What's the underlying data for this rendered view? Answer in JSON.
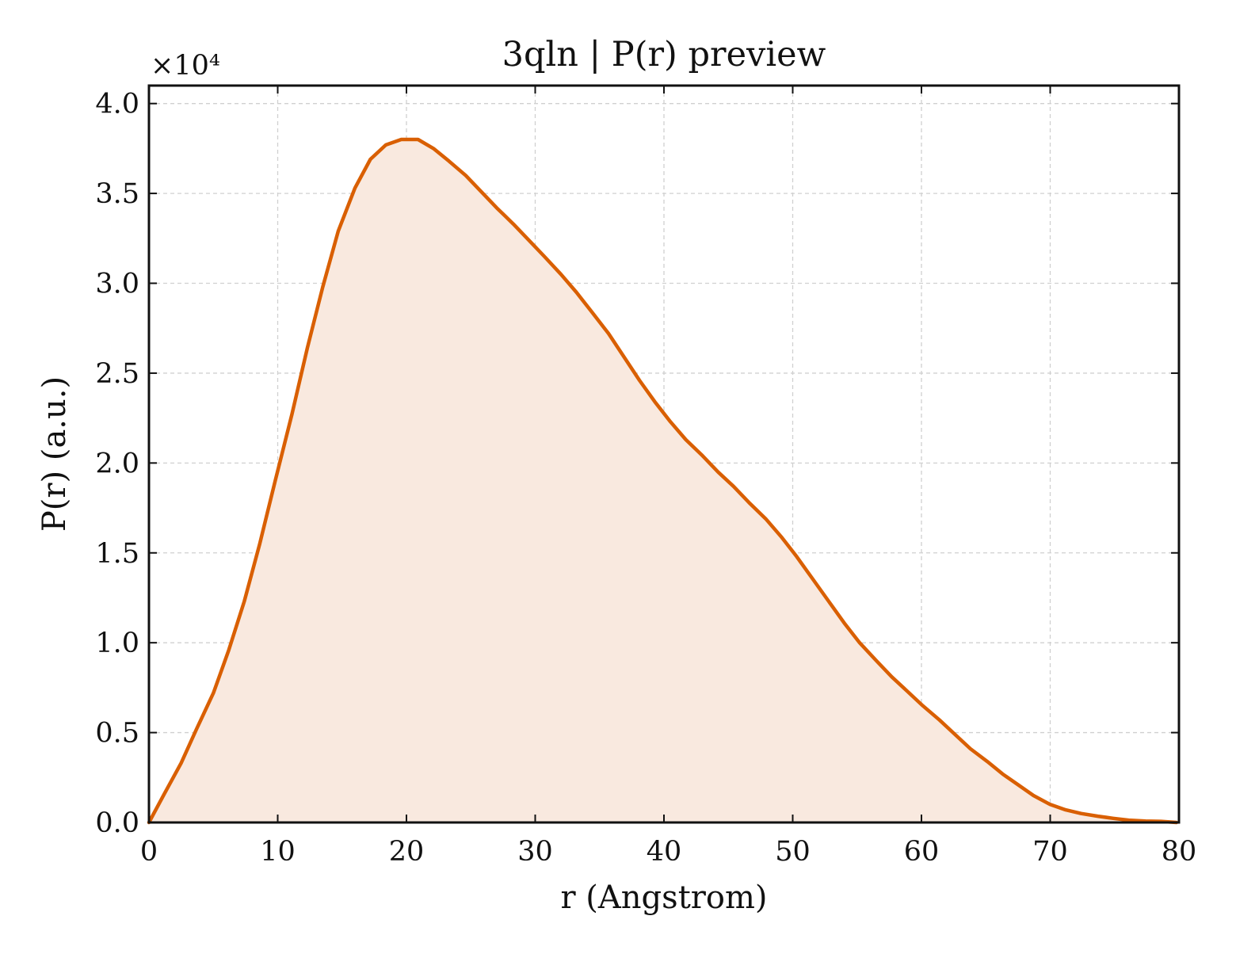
{
  "chart_data": {
    "type": "area",
    "title": "3qln | P(r) preview",
    "xlabel": "r (Angstrom)",
    "ylabel": "P(r) (a.u.)",
    "y_multiplier_label": "×10⁴",
    "xlim": [
      0,
      80
    ],
    "ylim": [
      0,
      41000
    ],
    "x_ticks": [
      0,
      10,
      20,
      30,
      40,
      50,
      60,
      70,
      80
    ],
    "x_tick_labels": [
      "0",
      "10",
      "20",
      "30",
      "40",
      "50",
      "60",
      "70",
      "80"
    ],
    "y_ticks": [
      0,
      5000,
      10000,
      15000,
      20000,
      25000,
      30000,
      35000,
      40000
    ],
    "y_tick_labels": [
      "0.0",
      "0.5",
      "1.0",
      "1.5",
      "2.0",
      "2.5",
      "3.0",
      "3.5",
      "4.0"
    ],
    "grid": true,
    "line_color": "#d95f02",
    "fill_color": "#f9e9df",
    "series": [
      {
        "x": [
          0,
          1.2,
          2.5,
          3.7,
          5,
          6.2,
          7.4,
          8.6,
          9.8,
          11.1,
          12.3,
          13.5,
          14.7,
          16,
          17.2,
          18.4,
          19.6,
          20.9,
          22.1,
          23.3,
          24.6,
          25.8,
          27,
          28.3,
          29.5,
          30.7,
          32,
          33.2,
          34.4,
          35.7,
          36.9,
          38.1,
          39.3,
          40.5,
          41.7,
          43,
          44.2,
          45.4,
          46.6,
          47.9,
          49.1,
          50.3,
          51.5,
          52.8,
          54,
          55.2,
          56.5,
          57.7,
          58.9,
          60.1,
          61.4,
          62.6,
          63.8,
          65.1,
          66.3,
          67.5,
          68.7,
          70,
          71.2,
          72.4,
          73.7,
          74.9,
          76.1,
          77.4,
          78.6,
          79.8
        ],
        "y": [
          0,
          1600,
          3300,
          5200,
          7200,
          9600,
          12300,
          15500,
          19000,
          22700,
          26400,
          29800,
          32900,
          35300,
          36900,
          37700,
          38000,
          38000,
          37500,
          36800,
          36000,
          35100,
          34200,
          33300,
          32400,
          31500,
          30500,
          29500,
          28400,
          27200,
          25900,
          24600,
          23400,
          22300,
          21300,
          20400,
          19500,
          18700,
          17800,
          16900,
          15900,
          14800,
          13600,
          12300,
          11100,
          10000,
          9000,
          8100,
          7300,
          6500,
          5700,
          4900,
          4100,
          3400,
          2700,
          2100,
          1500,
          1000,
          700,
          500,
          350,
          230,
          130,
          80,
          60,
          0
        ]
      }
    ]
  }
}
